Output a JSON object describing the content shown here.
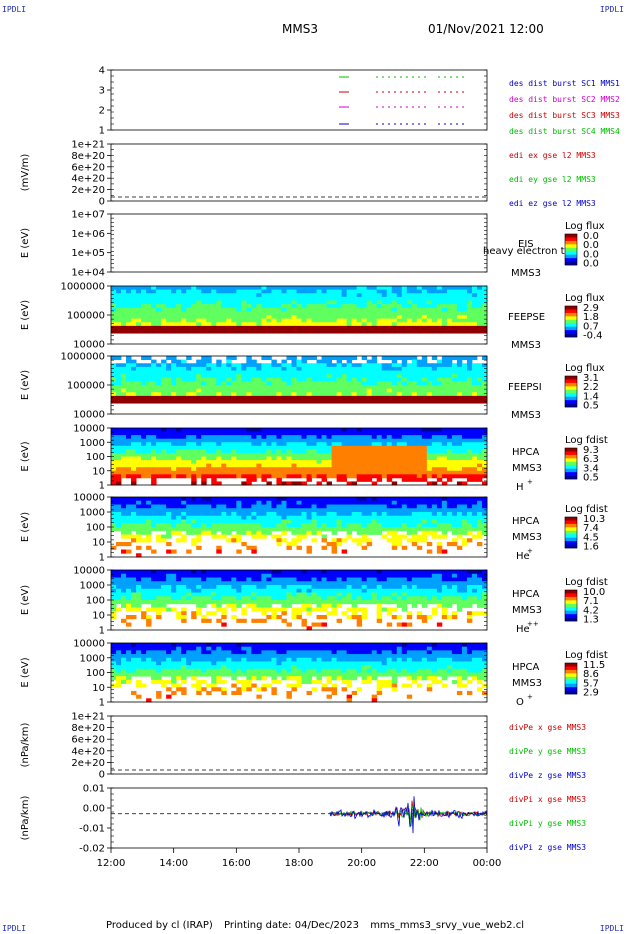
{
  "corner_label": "IPDLI",
  "header": {
    "spacecraft": "MMS3",
    "datetime": "01/Nov/2021 12:00"
  },
  "footer": {
    "produced_by": "Produced by cl (IRAP)",
    "printing_date": "Printing date: 04/Dec/2023",
    "filename": "mms_mms3_srvy_vue_web2.cl"
  },
  "colors": {
    "blue": "#0000cc",
    "magenta": "#cc00cc",
    "red": "#cc0000",
    "green": "#00bb00",
    "colorbar": [
      "#0000a0",
      "#0000ff",
      "#00a0ff",
      "#00ffff",
      "#60ff60",
      "#ffff00",
      "#ff8000",
      "#ff0000",
      "#900000"
    ]
  },
  "chart_data": [
    {
      "type": "line",
      "panel": "bursts",
      "ylabel": "",
      "yticks": [
        "4",
        "3",
        "2",
        "1"
      ],
      "series": [
        {
          "name": "des dist burst SC1 MMS1",
          "color": "blue"
        },
        {
          "name": "des dist burst SC2 MMS2",
          "color": "magenta"
        },
        {
          "name": "des dist burst SC3 MMS3",
          "color": "red"
        },
        {
          "name": "des dist burst SC4 MMS4",
          "color": "green"
        }
      ]
    },
    {
      "type": "line",
      "panel": "edi_e",
      "ylabel": "(mV/m)",
      "yticks": [
        "1e+21",
        "8e+20",
        "6e+20",
        "4e+20",
        "2e+20",
        "0"
      ],
      "series": [
        {
          "name": "edi ex gse l2 MMS3",
          "color": "red"
        },
        {
          "name": "edi ey gse l2 MMS3",
          "color": "green"
        },
        {
          "name": "edi ez gse l2 MMS3",
          "color": "blue"
        }
      ]
    },
    {
      "type": "heatmap",
      "panel": "eis",
      "ylabel": "E (eV)",
      "yticks": [
        "1e+07",
        "1e+06",
        "1e+05",
        "1e+04"
      ],
      "labels": [
        "EIS",
        "MMS3"
      ],
      "overlap_text": "heavy electron to",
      "cbar_title": "Log flux",
      "cbar_ticks": [
        "0.0",
        "0.0",
        "0.0",
        "0.0"
      ]
    },
    {
      "type": "heatmap",
      "panel": "feepse",
      "ylabel": "E (eV)",
      "yticks": [
        "1000000",
        "100000",
        "10000"
      ],
      "labels": [
        "FEEPSE",
        "MMS3"
      ],
      "cbar_title": "Log flux",
      "cbar_ticks": [
        "2.9",
        "1.8",
        "0.7",
        "-0.4"
      ]
    },
    {
      "type": "heatmap",
      "panel": "feepsi",
      "ylabel": "E (eV)",
      "yticks": [
        "1000000",
        "100000",
        "10000"
      ],
      "labels": [
        "FEEPSI",
        "MMS3"
      ],
      "cbar_title": "Log flux",
      "cbar_ticks": [
        "3.1",
        "2.2",
        "1.4",
        "0.5"
      ]
    },
    {
      "type": "heatmap",
      "panel": "hpca_h",
      "ylabel": "E (eV)",
      "yticks": [
        "10000",
        "1000",
        "100",
        "10",
        "1"
      ],
      "labels": [
        "HPCA",
        "MMS3"
      ],
      "species": "H",
      "charge": "+",
      "cbar_title": "Log fdist",
      "cbar_ticks": [
        "9.3",
        "6.3",
        "3.4",
        "0.5"
      ]
    },
    {
      "type": "heatmap",
      "panel": "hpca_he",
      "ylabel": "E (eV)",
      "yticks": [
        "10000",
        "1000",
        "100",
        "10",
        "1"
      ],
      "labels": [
        "HPCA",
        "MMS3"
      ],
      "species": "He",
      "charge": "+",
      "cbar_title": "Log fdist",
      "cbar_ticks": [
        "10.3",
        "7.4",
        "4.5",
        "1.6"
      ]
    },
    {
      "type": "heatmap",
      "panel": "hpca_hepp",
      "ylabel": "E (eV)",
      "yticks": [
        "10000",
        "1000",
        "100",
        "10",
        "1"
      ],
      "labels": [
        "HPCA",
        "MMS3"
      ],
      "species": "He",
      "charge": "++",
      "cbar_title": "Log fdist",
      "cbar_ticks": [
        "10.0",
        "7.1",
        "4.2",
        "1.3"
      ]
    },
    {
      "type": "heatmap",
      "panel": "hpca_o",
      "ylabel": "E (eV)",
      "yticks": [
        "10000",
        "1000",
        "100",
        "10",
        "1"
      ],
      "labels": [
        "HPCA",
        "MMS3"
      ],
      "species": "O",
      "charge": "+",
      "cbar_title": "Log fdist",
      "cbar_ticks": [
        "11.5",
        "8.6",
        "5.7",
        "2.9"
      ]
    },
    {
      "type": "line",
      "panel": "divpe",
      "ylabel": "(nPa/km)",
      "yticks": [
        "1e+21",
        "8e+20",
        "6e+20",
        "4e+20",
        "2e+20",
        "0"
      ],
      "series": [
        {
          "name": "divPe x gse MMS3",
          "color": "red"
        },
        {
          "name": "divPe y gse MMS3",
          "color": "green"
        },
        {
          "name": "divPe z gse MMS3",
          "color": "blue"
        }
      ]
    },
    {
      "type": "line",
      "panel": "divpi",
      "ylabel": "(nPa/km)",
      "yticks": [
        "0.01",
        "0.00",
        "-0.01",
        "-0.02"
      ],
      "ylim": [
        -0.02,
        0.015
      ],
      "series": [
        {
          "name": "divPi x gse MMS3",
          "color": "red"
        },
        {
          "name": "divPi y gse MMS3",
          "color": "green"
        },
        {
          "name": "divPi z gse MMS3",
          "color": "blue"
        }
      ]
    }
  ],
  "xaxis": {
    "ticks": [
      "12:00",
      "14:00",
      "16:00",
      "18:00",
      "20:00",
      "22:00",
      "00:00"
    ]
  }
}
